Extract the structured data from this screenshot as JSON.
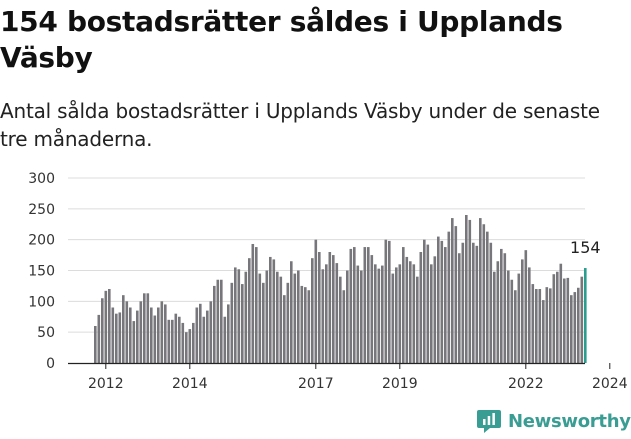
{
  "header": {
    "title": "154 bostadsrätter såldes i Upplands Väsby",
    "subtitle": "Antal sålda bostadsrätter i Upplands Väsby under de senaste tre månaderna."
  },
  "brand": {
    "name": "Newsworthy",
    "icon": "newsworthy-logo-icon",
    "color": "#3a9d94"
  },
  "colors": {
    "bar": "#77767b",
    "highlight": "#2a9d8f",
    "grid": "#dcdcdc"
  },
  "chart_data": {
    "type": "bar",
    "x_start": "2011-10",
    "x_step": "month",
    "x_ticks": [
      "2012",
      "2014",
      "2017",
      "2019",
      "2022",
      "2024"
    ],
    "y_ticks": [
      0,
      50,
      100,
      150,
      200,
      250,
      300
    ],
    "ylim": [
      0,
      300
    ],
    "grid": true,
    "highlight_label": "154",
    "values": [
      60,
      78,
      105,
      117,
      120,
      90,
      80,
      82,
      110,
      100,
      90,
      68,
      85,
      100,
      113,
      113,
      90,
      77,
      90,
      100,
      95,
      70,
      70,
      80,
      75,
      65,
      50,
      55,
      65,
      90,
      96,
      75,
      85,
      100,
      125,
      135,
      135,
      75,
      95,
      130,
      155,
      152,
      128,
      148,
      170,
      193,
      188,
      145,
      130,
      150,
      172,
      168,
      148,
      140,
      110,
      130,
      165,
      145,
      150,
      125,
      123,
      118,
      170,
      200,
      180,
      152,
      160,
      180,
      175,
      162,
      140,
      118,
      150,
      185,
      188,
      158,
      150,
      188,
      188,
      175,
      160,
      153,
      158,
      200,
      198,
      145,
      155,
      160,
      188,
      172,
      165,
      160,
      140,
      180,
      200,
      192,
      160,
      173,
      205,
      198,
      188,
      213,
      235,
      222,
      178,
      195,
      240,
      232,
      195,
      190,
      235,
      225,
      213,
      195,
      148,
      165,
      185,
      178,
      150,
      135,
      118,
      145,
      168,
      183,
      155,
      128,
      120,
      120,
      102,
      123,
      121,
      144,
      148,
      161,
      137,
      138,
      110,
      115,
      122,
      140,
      154
    ]
  }
}
